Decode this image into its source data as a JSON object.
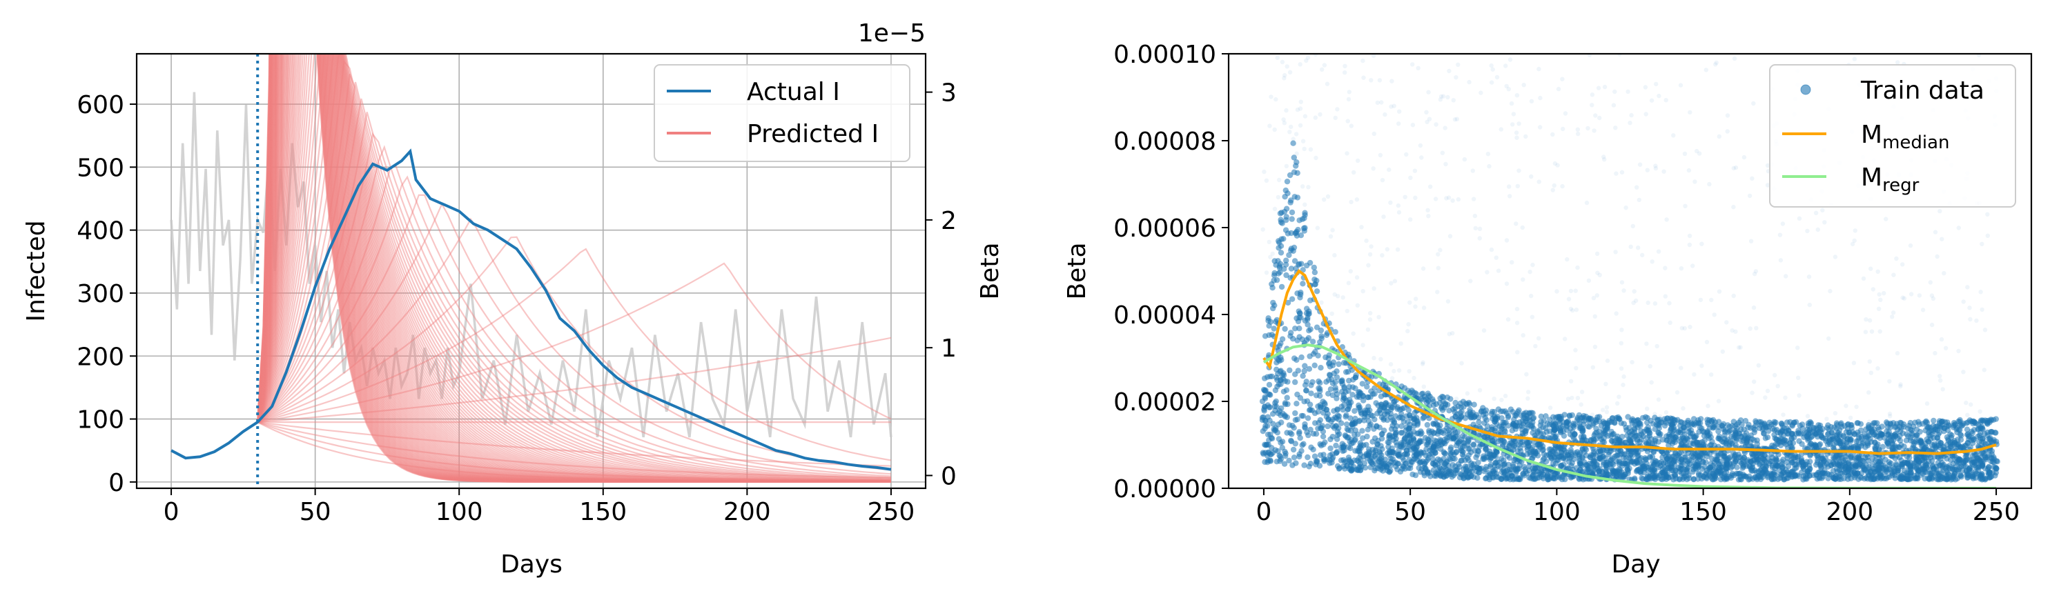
{
  "chart_data": [
    {
      "type": "line",
      "xlabel": "Days",
      "ylabel": "Infected",
      "ylabel_right": "Beta",
      "right_axis_offset_label": "1e−5",
      "xlim": [
        -12,
        262
      ],
      "ylim": [
        -10,
        680
      ],
      "ylim_right": [
        -0.1,
        3.3
      ],
      "x_ticks": [
        0,
        50,
        100,
        150,
        200,
        250
      ],
      "y_ticks": [
        0,
        100,
        200,
        300,
        400,
        500,
        600
      ],
      "y_ticks_right": [
        0,
        1,
        2,
        3
      ],
      "grid": true,
      "legend_position": "top-right",
      "forecast_start_day": 30,
      "colors": {
        "actual": "#1f77b4",
        "predicted": "#f08080",
        "beta": "#c8c8c8",
        "vline": "#1f77b4"
      },
      "series": [
        {
          "name": "Actual I",
          "x": [
            0,
            5,
            10,
            15,
            20,
            25,
            30,
            35,
            40,
            45,
            50,
            55,
            60,
            65,
            70,
            75,
            80,
            83,
            85,
            90,
            95,
            100,
            105,
            110,
            115,
            120,
            125,
            130,
            135,
            140,
            145,
            150,
            155,
            160,
            165,
            170,
            175,
            180,
            185,
            190,
            195,
            200,
            205,
            210,
            215,
            220,
            225,
            230,
            235,
            240,
            245,
            250
          ],
          "values": [
            50,
            38,
            40,
            48,
            62,
            80,
            95,
            120,
            175,
            240,
            310,
            370,
            420,
            470,
            505,
            495,
            510,
            525,
            480,
            450,
            440,
            430,
            410,
            400,
            385,
            370,
            340,
            305,
            260,
            240,
            210,
            185,
            165,
            150,
            140,
            130,
            120,
            110,
            100,
            90,
            80,
            70,
            60,
            50,
            45,
            38,
            34,
            32,
            28,
            25,
            23,
            20
          ]
        },
        {
          "name": "Predicted I",
          "x0": 30,
          "y0": 95,
          "x_end": 250,
          "note": "ensemble of predicted trajectories fanning out from day 30",
          "growth_rates": [
            -0.025,
            -0.018,
            -0.012,
            -0.006,
            0.0,
            0.004,
            0.008,
            0.012,
            0.016,
            0.02,
            0.024,
            0.028,
            0.032,
            0.036,
            0.04,
            0.044,
            0.048,
            0.052,
            0.056,
            0.06,
            0.065,
            0.07,
            0.075,
            0.08,
            0.085,
            0.09,
            0.095,
            0.1,
            0.105,
            0.11,
            0.115,
            0.12,
            0.125,
            0.13,
            0.135,
            0.14,
            0.145,
            0.15,
            0.155,
            0.16,
            0.165,
            0.17,
            0.175,
            0.18,
            0.185,
            0.19,
            0.195,
            0.2,
            0.205,
            0.21,
            0.215,
            0.22,
            0.225,
            0.23,
            0.235,
            0.24,
            0.245,
            0.25,
            0.255,
            0.26,
            0.265,
            0.27,
            0.275,
            0.28,
            0.285,
            0.29,
            0.295,
            0.3,
            0.305,
            0.31,
            0.315,
            0.32,
            0.325,
            0.33,
            0.335,
            0.34,
            0.345,
            0.35,
            0.355,
            0.36,
            0.365,
            0.37,
            0.375,
            0.38,
            0.385,
            0.39,
            0.395,
            0.4,
            0.405,
            0.41,
            0.415,
            0.42,
            0.425,
            0.43,
            0.435,
            0.44,
            0.445,
            0.45,
            0.455,
            0.46,
            0.465,
            0.47,
            0.475,
            0.48
          ]
        },
        {
          "name": "",
          "axis": "right",
          "x": [
            0,
            2,
            4,
            6,
            8,
            10,
            12,
            14,
            16,
            18,
            20,
            22,
            24,
            26,
            28,
            30,
            32,
            34,
            36,
            38,
            40,
            42,
            44,
            46,
            48,
            50,
            52,
            54,
            56,
            58,
            60,
            62,
            64,
            66,
            68,
            70,
            72,
            74,
            76,
            78,
            80,
            82,
            84,
            86,
            88,
            90,
            92,
            94,
            96,
            98,
            100,
            104,
            108,
            112,
            116,
            120,
            124,
            128,
            132,
            136,
            140,
            144,
            148,
            152,
            156,
            160,
            164,
            168,
            172,
            176,
            180,
            184,
            188,
            192,
            196,
            200,
            204,
            208,
            212,
            216,
            220,
            224,
            228,
            232,
            236,
            240,
            244,
            248,
            250
          ],
          "values": [
            2.0,
            1.3,
            2.6,
            1.5,
            3.0,
            1.6,
            2.4,
            1.1,
            2.7,
            1.8,
            2.0,
            0.9,
            1.7,
            2.9,
            1.5,
            2.0,
            1.9,
            2.5,
            1.6,
            2.4,
            1.8,
            2.6,
            2.1,
            2.3,
            1.5,
            1.8,
            1.2,
            1.6,
            1.0,
            1.3,
            0.8,
            1.2,
            0.9,
            1.0,
            0.7,
            1.0,
            0.8,
            0.9,
            0.6,
            1.0,
            0.7,
            0.8,
            1.1,
            0.6,
            1.0,
            0.8,
            0.9,
            0.6,
            1.0,
            0.7,
            0.8,
            1.5,
            0.6,
            0.9,
            0.4,
            1.1,
            0.5,
            0.8,
            0.4,
            0.9,
            0.5,
            1.3,
            0.3,
            0.9,
            0.6,
            1.0,
            0.3,
            1.1,
            0.5,
            0.8,
            0.3,
            1.2,
            0.6,
            0.4,
            1.3,
            0.5,
            0.9,
            0.3,
            1.3,
            0.6,
            0.4,
            1.4,
            0.5,
            0.9,
            0.3,
            1.2,
            0.4,
            0.8,
            0.3
          ]
        }
      ]
    },
    {
      "type": "scatter",
      "xlabel": "Day",
      "ylabel": "Beta",
      "xlim": [
        -12,
        262
      ],
      "ylim": [
        0,
        0.0001
      ],
      "x_ticks": [
        0,
        50,
        100,
        150,
        200,
        250
      ],
      "y_tick_labels": [
        "0.00000",
        "0.00002",
        "0.00004",
        "0.00006",
        "0.00008",
        "0.00010"
      ],
      "y_ticks": [
        0,
        2e-05,
        4e-05,
        6e-05,
        8e-05,
        0.0001
      ],
      "grid": false,
      "legend_position": "top-right",
      "colors": {
        "train": "#1f77b4",
        "median": "#ffa500",
        "regr": "#90ee90"
      },
      "legend": [
        {
          "label": "Train data",
          "sub": ""
        },
        {
          "label": "M",
          "sub": "median"
        },
        {
          "label": "M",
          "sub": "regr"
        }
      ],
      "series": [
        {
          "name": "Train data",
          "note": "dense scatter of per-day beta samples, days 0–250",
          "x": [
            0,
            5,
            10,
            15,
            20,
            30,
            40,
            50,
            75,
            100,
            150,
            200,
            250
          ],
          "band_low": [
            6e-06,
            6e-06,
            5e-06,
            5e-06,
            5e-06,
            4e-06,
            4e-06,
            3e-06,
            2e-06,
            2e-06,
            2e-06,
            2e-06,
            2e-06
          ],
          "band_high": [
            3e-05,
            6e-05,
            8e-05,
            6e-05,
            4e-05,
            3e-05,
            2.6e-05,
            2.3e-05,
            1.9e-05,
            1.7e-05,
            1.6e-05,
            1.5e-05,
            1.6e-05
          ]
        },
        {
          "name": "M_median",
          "x": [
            0,
            2,
            4,
            6,
            8,
            10,
            12,
            14,
            16,
            18,
            20,
            22,
            25,
            28,
            32,
            36,
            40,
            45,
            50,
            60,
            70,
            80,
            90,
            100,
            110,
            120,
            130,
            140,
            150,
            160,
            170,
            180,
            190,
            200,
            210,
            220,
            230,
            240,
            245,
            250
          ],
          "values": [
            3e-05,
            2.8e-05,
            3.4e-05,
            4e-05,
            4.5e-05,
            4.8e-05,
            5e-05,
            4.9e-05,
            4.6e-05,
            4.3e-05,
            4e-05,
            3.7e-05,
            3.3e-05,
            3e-05,
            2.7e-05,
            2.5e-05,
            2.3e-05,
            2.1e-05,
            1.9e-05,
            1.6e-05,
            1.4e-05,
            1.2e-05,
            1.15e-05,
            1.05e-05,
            1e-05,
            9.5e-06,
            9.5e-06,
            9e-06,
            9e-06,
            9e-06,
            8.8e-06,
            8.5e-06,
            8.5e-06,
            8.5e-06,
            8e-06,
            8.2e-06,
            8e-06,
            8.5e-06,
            9e-06,
            1e-05
          ]
        },
        {
          "name": "M_regr",
          "x": [
            0,
            5,
            10,
            15,
            20,
            25,
            30,
            40,
            50,
            60,
            70,
            80,
            90,
            100,
            110,
            120,
            130,
            140,
            150,
            175,
            200,
            225,
            250
          ],
          "values": [
            2.9e-05,
            3.1e-05,
            3.25e-05,
            3.3e-05,
            3.25e-05,
            3.1e-05,
            2.9e-05,
            2.55e-05,
            2.1e-05,
            1.65e-05,
            1.25e-05,
            9.2e-06,
            6.4e-06,
            4.3e-06,
            2.8e-06,
            1.8e-06,
            1.1e-06,
            7e-07,
            4e-07,
            1e-07,
            5e-08,
            3e-08,
            2e-08
          ]
        }
      ]
    }
  ]
}
